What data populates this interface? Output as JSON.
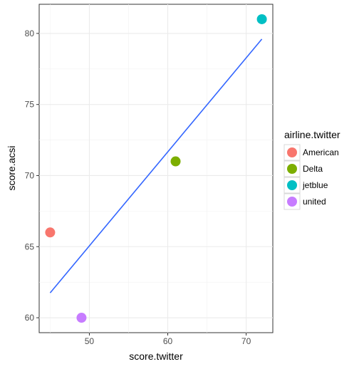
{
  "chart_data": {
    "type": "scatter",
    "xlabel": "score.twitter",
    "ylabel": "score.acsi",
    "xlim": [
      43.6,
      73.4
    ],
    "ylim": [
      58.95,
      82.05
    ],
    "x_ticks": [
      50,
      60,
      70
    ],
    "y_ticks": [
      60,
      65,
      70,
      75,
      80
    ],
    "grid": true,
    "legend": {
      "title": "airline.twitter",
      "position": "right"
    },
    "series": [
      {
        "name": "American",
        "color": "#F8766D",
        "points": [
          {
            "x": 45,
            "y": 66
          }
        ]
      },
      {
        "name": "Delta",
        "color": "#7CAE00",
        "points": [
          {
            "x": 61,
            "y": 71
          }
        ]
      },
      {
        "name": "jetblue",
        "color": "#00BFC4",
        "points": [
          {
            "x": 72,
            "y": 81
          }
        ]
      },
      {
        "name": "united",
        "color": "#C77CFF",
        "points": [
          {
            "x": 49,
            "y": 60
          }
        ]
      }
    ],
    "trend_line": {
      "type": "linear",
      "color": "#3366FF",
      "x": [
        45,
        72
      ],
      "y": [
        61.75,
        79.6
      ]
    }
  }
}
